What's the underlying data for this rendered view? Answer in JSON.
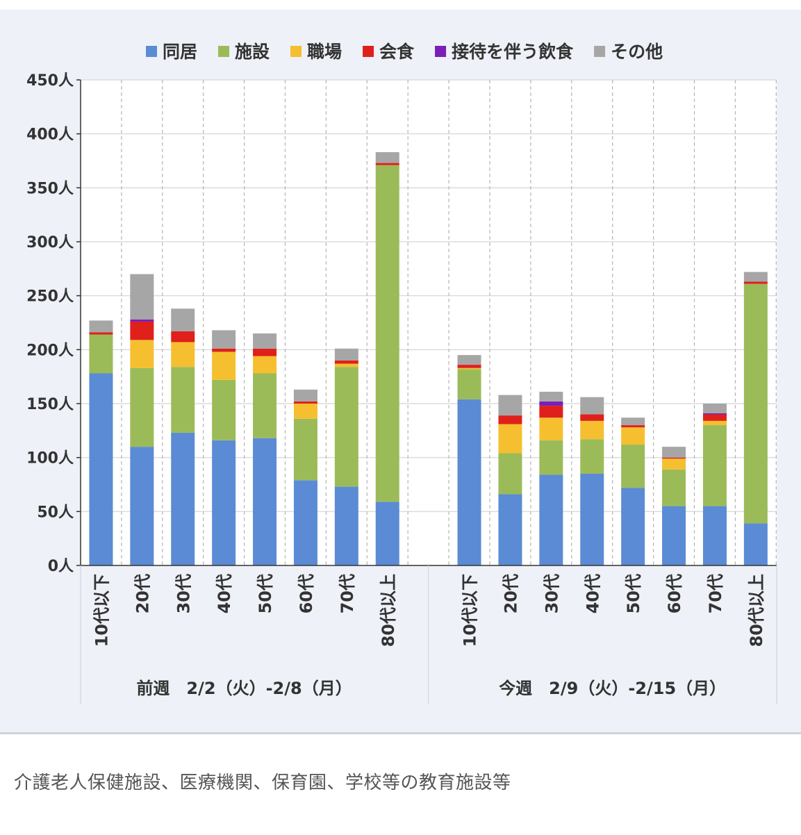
{
  "chart_data": {
    "type": "bar",
    "stacked": true,
    "title": "",
    "xlabel": "",
    "ylabel": "",
    "ylim": [
      0,
      450
    ],
    "yticks": [
      0,
      50,
      100,
      150,
      200,
      250,
      300,
      350,
      400,
      450
    ],
    "ytick_suffix": "人",
    "grid": true,
    "legend_position": "top",
    "groups": [
      {
        "label": "前週　2/2（火）-2/8（月）",
        "categories": [
          "10代以下",
          "20代",
          "30代",
          "40代",
          "50代",
          "60代",
          "70代",
          "80代以上"
        ]
      },
      {
        "label": "今週　2/9（火）-2/15（月）",
        "categories": [
          "10代以下",
          "20代",
          "30代",
          "40代",
          "50代",
          "60代",
          "70代",
          "80代以上"
        ]
      }
    ],
    "series": [
      {
        "name": "同居",
        "color": "#5b8bd4",
        "values": [
          [
            178,
            110,
            123,
            116,
            118,
            79,
            73,
            59
          ],
          [
            154,
            66,
            84,
            85,
            72,
            55,
            55,
            39
          ]
        ]
      },
      {
        "name": "施設",
        "color": "#9bbb59",
        "values": [
          [
            36,
            73,
            61,
            56,
            60,
            57,
            111,
            312
          ],
          [
            28,
            38,
            32,
            32,
            40,
            34,
            75,
            222
          ]
        ]
      },
      {
        "name": "職場",
        "color": "#f5bf2f",
        "values": [
          [
            0,
            26,
            23,
            26,
            16,
            14,
            3,
            0
          ],
          [
            1,
            27,
            21,
            17,
            16,
            10,
            4,
            0
          ]
        ]
      },
      {
        "name": "会食",
        "color": "#e0201b",
        "values": [
          [
            2,
            17,
            10,
            3,
            7,
            2,
            3,
            2
          ],
          [
            3,
            8,
            11,
            6,
            2,
            1,
            6,
            2
          ]
        ]
      },
      {
        "name": "接待を伴う飲食",
        "color": "#7a1fb8",
        "values": [
          [
            0,
            2,
            0,
            0,
            0,
            0,
            0,
            0
          ],
          [
            0,
            0,
            4,
            0,
            0,
            0,
            1,
            0
          ]
        ]
      },
      {
        "name": "その他",
        "color": "#a6a6a6",
        "values": [
          [
            11,
            42,
            21,
            17,
            14,
            11,
            11,
            10
          ],
          [
            9,
            19,
            9,
            16,
            7,
            10,
            9,
            9
          ]
        ]
      }
    ]
  },
  "footnote": "介護老人保健施設、医療機関、保育園、学校等の教育施設等"
}
